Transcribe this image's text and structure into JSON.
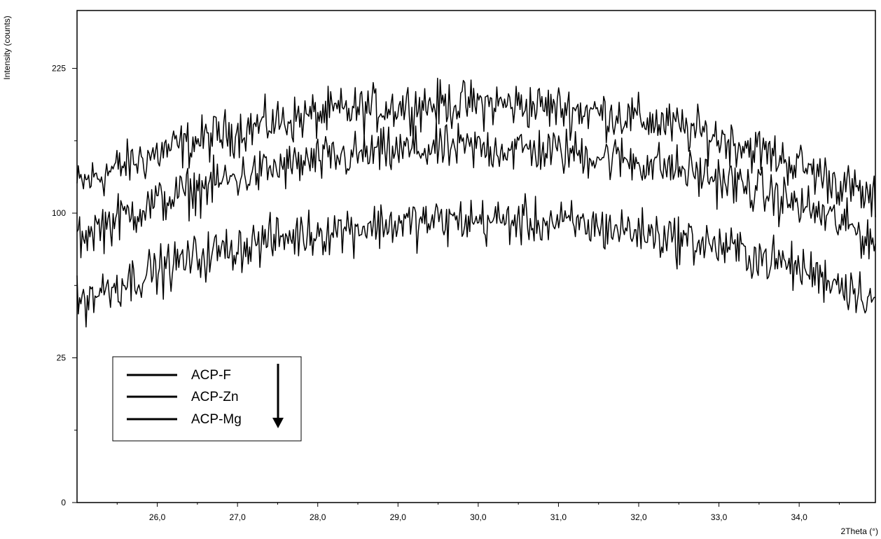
{
  "chart_data": {
    "type": "line",
    "title": "",
    "xlabel": "2Theta (°)",
    "ylabel": "Intensity (counts)",
    "x_range": [
      25.0,
      34.95
    ],
    "y_scale": "sqrt",
    "y_ticks": [
      "225",
      "100",
      "25",
      "0"
    ],
    "y_tick_values": [
      225,
      100,
      25,
      0
    ],
    "y_minor_ticks": [
      156.25,
      56.25,
      6.25
    ],
    "x_ticks": [
      "26,0",
      "27,0",
      "28,0",
      "29,0",
      "30,0",
      "31,0",
      "32,0",
      "33,0",
      "34,0"
    ],
    "x_tick_values": [
      26,
      27,
      28,
      29,
      30,
      31,
      32,
      33,
      34
    ],
    "grid": false,
    "line_color": "#000000",
    "series": [
      {
        "name": "ACP-F",
        "x_start": 25.0,
        "x_end": 34.95,
        "y_start": 120,
        "y_peak": 190,
        "x_peak": 29.9,
        "y_end": 108
      },
      {
        "name": "ACP-Zn",
        "x_start": 25.0,
        "x_end": 34.95,
        "y_start": 84,
        "y_peak": 150,
        "x_peak": 30.0,
        "y_end": 82
      },
      {
        "name": "ACP-Mg",
        "x_start": 25.0,
        "x_end": 34.95,
        "y_start": 48,
        "y_peak": 95,
        "x_peak": 30.0,
        "y_end": 50
      }
    ],
    "legend": {
      "placement": "lower-left",
      "entries": [
        "ACP-F",
        "ACP-Zn",
        "ACP-Mg"
      ],
      "arrow": "down"
    }
  }
}
